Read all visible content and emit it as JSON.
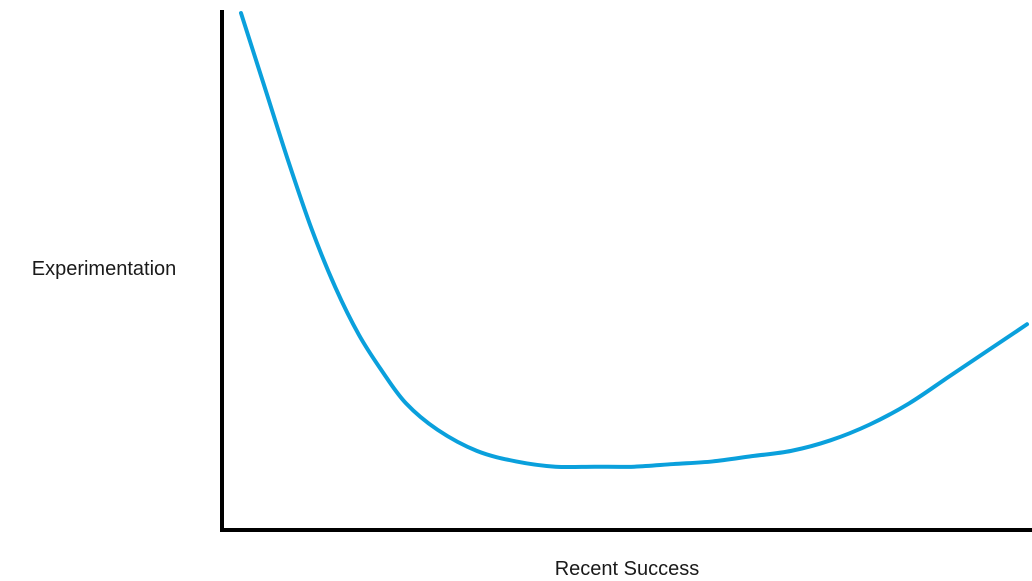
{
  "chart_data": {
    "type": "line",
    "title": "",
    "xlabel": "Recent Success",
    "ylabel": "Experimentation",
    "xlim": [
      0,
      100
    ],
    "ylim": [
      0,
      100
    ],
    "grid": false,
    "legend": "none",
    "series": [
      {
        "color": "#0aa0dc",
        "x": [
          0,
          3,
          6,
          9,
          12,
          15,
          18,
          21,
          25,
          30,
          35,
          40,
          45,
          50,
          55,
          60,
          65,
          70,
          75,
          80,
          85,
          90,
          95,
          100
        ],
        "y": [
          98,
          84,
          70,
          57,
          46,
          37,
          30,
          24,
          19,
          15,
          13,
          12,
          12,
          12,
          12.5,
          13,
          14,
          15,
          17,
          20,
          24,
          29,
          34,
          39
        ]
      }
    ]
  }
}
